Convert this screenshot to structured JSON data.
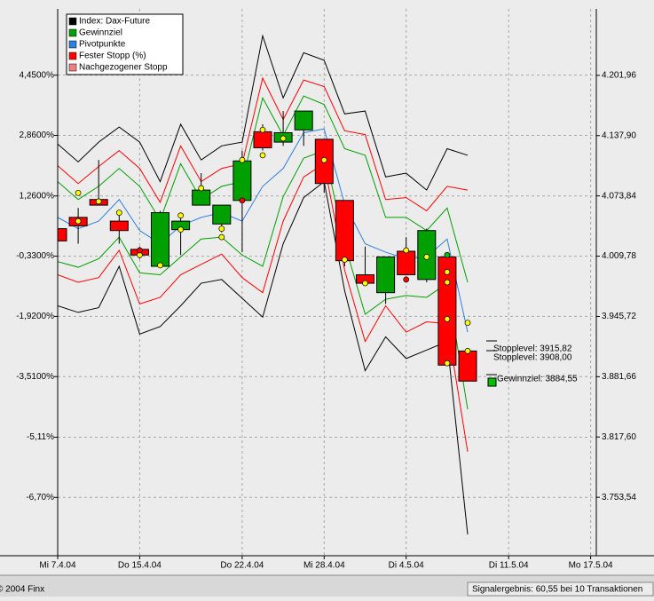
{
  "chart_data": {
    "type": "candlestick",
    "legend": "upper left",
    "grid": true,
    "categories": [
      "Mi 7.4.04",
      null,
      null,
      null,
      "Do 15.4.04",
      null,
      null,
      null,
      null,
      "Do 22.4.04",
      null,
      null,
      null,
      "Mi 28.4.04",
      null,
      null,
      null,
      "Di 4.5.04",
      null,
      null,
      null,
      null,
      "Di 11.5.04",
      null,
      null,
      null,
      "Mo 17.5.04"
    ],
    "ylim": [
      -8.24,
      6.2
    ],
    "yticks": [
      {
        "value": 4.45,
        "label": "4,4500%"
      },
      {
        "value": 2.86,
        "label": "2,8600%"
      },
      {
        "value": 1.26,
        "label": "1,2600%"
      },
      {
        "value": -0.33,
        "label": "-0,3300%"
      },
      {
        "value": -1.92,
        "label": "-1,9200%"
      },
      {
        "value": -3.51,
        "label": "-3,5100%"
      },
      {
        "value": -5.11,
        "label": "-5,11%"
      },
      {
        "value": -6.7,
        "label": "-6,70%"
      }
    ],
    "y2lim": [
      3691.4,
      4272.6
    ],
    "y2ticks": [
      {
        "value": 4201.96,
        "label": "4.201,96"
      },
      {
        "value": 4137.9,
        "label": "4.137,90"
      },
      {
        "value": 4073.84,
        "label": "4.073,84"
      },
      {
        "value": 4009.78,
        "label": "4.009,78"
      },
      {
        "value": 3945.72,
        "label": "3.945,72"
      },
      {
        "value": 3881.66,
        "label": "3.881,66"
      },
      {
        "value": 3817.6,
        "label": "3.817,60"
      },
      {
        "value": 3753.54,
        "label": "3.753,54"
      }
    ],
    "candles": {
      "axis": "y2",
      "up_color": "#00a000",
      "down_color": "#ff0000",
      "open": [
        4039,
        4051,
        4070,
        4047,
        4017,
        3999,
        4038,
        4064,
        4044,
        4069,
        4142,
        4131,
        4144,
        4134,
        4069,
        3990,
        3971,
        4015,
        3985,
        4009,
        3909,
        null,
        null,
        null,
        null,
        null,
        null
      ],
      "high": [
        4042,
        4061,
        4112,
        4056,
        4020,
        4058,
        4052,
        4098,
        4064,
        4122,
        4150,
        4164,
        4164,
        4134,
        4069,
        4020,
        4009,
        4030,
        4039,
        4009,
        3909,
        null,
        null,
        null,
        null,
        null,
        null
      ],
      "low": [
        4024,
        4023,
        4064,
        4023,
        4007,
        3997,
        4011,
        4064,
        4035,
        4014,
        4122,
        4127,
        4127,
        4077,
        3999,
        3981,
        3959,
        3990,
        3982,
        3894,
        3877,
        null,
        null,
        null,
        null,
        null,
        null
      ],
      "close": [
        4026,
        4042,
        4064,
        4037,
        4011,
        4056,
        4047,
        4080,
        4064,
        4111,
        4125,
        4141,
        4164,
        4087,
        4005,
        3981,
        4009,
        3990,
        4037,
        3894,
        3877,
        null,
        null,
        null,
        null,
        null,
        null
      ]
    },
    "series": [
      {
        "name": "Index: Dax-Future",
        "color": "#000000",
        "axis": "y2",
        "values": [
          4129,
          4110,
          4131,
          4147,
          4131,
          4089,
          4150,
          4112,
          4127,
          4131,
          4244,
          4178,
          4226,
          4218,
          4161,
          4164,
          4094,
          4098,
          4080,
          4124,
          4117,
          null,
          null,
          null,
          null,
          null,
          null
        ],
        "lower": [
          3957,
          3950,
          3955,
          3999,
          3927,
          3935,
          3957,
          3981,
          3985,
          3965,
          3945,
          4023,
          4072,
          4089,
          3973,
          3888,
          3924,
          3901,
          3910,
          3919,
          3714,
          null,
          null,
          null,
          null,
          null,
          null
        ]
      },
      {
        "name": "Gewinnziel",
        "color": "#00a000",
        "axis": "y2",
        "values": [
          4089,
          4070,
          4084,
          4103,
          4084,
          4048,
          4108,
          4070,
          4084,
          4089,
          4178,
          4138,
          4180,
          4171,
          4124,
          4117,
          4051,
          4051,
          4037,
          4061,
          3982,
          null,
          null,
          null,
          null,
          null,
          null
        ],
        "lower": [
          4004,
          3998,
          4007,
          4030,
          3992,
          3990,
          4009,
          4028,
          4030,
          4011,
          3999,
          4073,
          4114,
          4122,
          4023,
          3948,
          3964,
          3968,
          3966,
          3981,
          3847,
          null,
          null,
          null,
          null,
          null,
          null
        ]
      },
      {
        "name": "Pivotpunkte",
        "color": "#2f7fe0",
        "axis": "y2",
        "values": [
          4051,
          4039,
          4047,
          4070,
          4037,
          4023,
          4042,
          4051,
          4056,
          4047,
          4084,
          4103,
          4141,
          4145,
          4065,
          4023,
          4014,
          4007,
          4009,
          4028,
          3929,
          null,
          null,
          null,
          null,
          null,
          null
        ]
      },
      {
        "name": "Fester Stopp (%)",
        "color": "#ff0000",
        "axis": "y2",
        "values": [
          4106,
          4087,
          4105,
          4122,
          4103,
          4067,
          4127,
          4089,
          4103,
          4108,
          4199,
          4155,
          4197,
          4190,
          4143,
          4139,
          4070,
          4072,
          4058,
          4084,
          4080,
          null,
          null,
          null,
          null,
          null,
          null
        ],
        "lower": [
          3990,
          3982,
          3987,
          4016,
          3959,
          3966,
          3990,
          4001,
          4012,
          3987,
          3971,
          4047,
          4094,
          4108,
          3995,
          3919,
          3957,
          3929,
          3940,
          3938,
          3802,
          null,
          null,
          null,
          null,
          null,
          null
        ]
      },
      {
        "name": "Nachgezogener Stopp",
        "color": "#f08080",
        "axis": "y2"
      }
    ],
    "markers": {
      "axis": "y2",
      "points": [
        {
          "x": 1,
          "value": 4077,
          "color": "#ffff00"
        },
        {
          "x": 1,
          "value": 4047,
          "color": "#ffff00"
        },
        {
          "x": 2,
          "value": 4068,
          "color": "#ffff00"
        },
        {
          "x": 3,
          "value": 4056,
          "color": "#ffff00"
        },
        {
          "x": 4,
          "value": 4011,
          "color": "#ffff00"
        },
        {
          "x": 4,
          "value": 4016,
          "color": "#ff0000"
        },
        {
          "x": 5,
          "value": 4000,
          "color": "#ffff00"
        },
        {
          "x": 6,
          "value": 4053,
          "color": "#ffff00"
        },
        {
          "x": 6,
          "value": 4038,
          "color": "#ffff00"
        },
        {
          "x": 7,
          "value": 4082,
          "color": "#ffff00"
        },
        {
          "x": 8,
          "value": 4039,
          "color": "#ffff00"
        },
        {
          "x": 8,
          "value": 4030,
          "color": "#ffff00"
        },
        {
          "x": 9,
          "value": 4112,
          "color": "#ffff00"
        },
        {
          "x": 9,
          "value": 4069,
          "color": "#ff0000"
        },
        {
          "x": 10,
          "value": 4144,
          "color": "#ffff00"
        },
        {
          "x": 10,
          "value": 4117,
          "color": "#ffff00"
        },
        {
          "x": 11,
          "value": 4135,
          "color": "#ffff00"
        },
        {
          "x": 13,
          "value": 4112,
          "color": "#ffff00"
        },
        {
          "x": 14,
          "value": 4006,
          "color": "#ffff00"
        },
        {
          "x": 15,
          "value": 3981,
          "color": "#ffff00"
        },
        {
          "x": 17,
          "value": 4016,
          "color": "#ffff00"
        },
        {
          "x": 17,
          "value": 3985,
          "color": "#ff0000"
        },
        {
          "x": 18,
          "value": 4009,
          "color": "#ffff00"
        },
        {
          "x": 19,
          "value": 4011,
          "color": "#00c000"
        },
        {
          "x": 19,
          "value": 3993,
          "color": "#ffff00"
        },
        {
          "x": 19,
          "value": 3982,
          "color": "#ffff00"
        },
        {
          "x": 19,
          "value": 3943,
          "color": "#ffff00"
        },
        {
          "x": 19,
          "value": 3896,
          "color": "#ffff00"
        },
        {
          "x": 20,
          "value": 3939,
          "color": "#ffff00"
        },
        {
          "x": 20,
          "value": 3909,
          "color": "#ffff00"
        }
      ]
    },
    "annotations": [
      "Stopplevel: 3915,82",
      "Stopplevel: 3908,00",
      "Gewinnziel: 3884,55"
    ]
  },
  "footer": {
    "left": "© 2004 Finx",
    "right": "Signalergebnis: 60,55 bei 10 Transaktionen"
  }
}
